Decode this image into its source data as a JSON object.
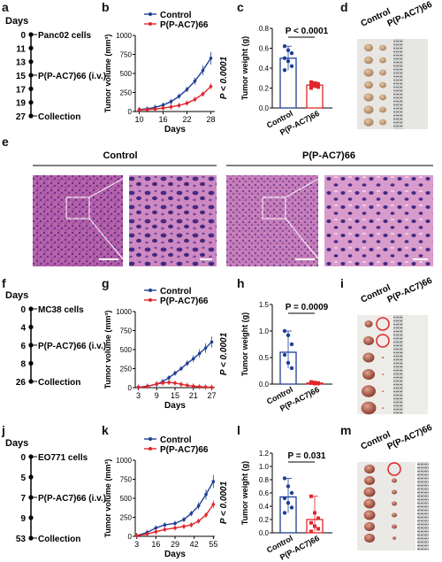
{
  "panel_letters": [
    "a",
    "b",
    "c",
    "d",
    "e",
    "f",
    "g",
    "h",
    "i",
    "j",
    "k",
    "l",
    "m"
  ],
  "timelines": [
    {
      "id": "tl1",
      "header": "Days",
      "events": [
        {
          "day": "0",
          "label": "Panc02 cells",
          "major": true
        },
        {
          "day": "11",
          "label": "",
          "major": false
        },
        {
          "day": "13",
          "label": "",
          "major": false
        },
        {
          "day": "15",
          "label": "P(P-AC7)66 (i.v.)",
          "major": true
        },
        {
          "day": "17",
          "label": "",
          "major": false
        },
        {
          "day": "19",
          "label": "",
          "major": false
        },
        {
          "day": "27",
          "label": "Collection",
          "major": true
        }
      ]
    },
    {
      "id": "tl2",
      "header": "Days",
      "events": [
        {
          "day": "0",
          "label": "MC38 cells",
          "major": true
        },
        {
          "day": "4",
          "label": "",
          "major": false
        },
        {
          "day": "6",
          "label": "P(P-AC7)66 (i.v.)",
          "major": true
        },
        {
          "day": "8",
          "label": "",
          "major": false
        },
        {
          "day": "26",
          "label": "Collection",
          "major": true
        }
      ]
    },
    {
      "id": "tl3",
      "header": "Days",
      "events": [
        {
          "day": "0",
          "label": "EO771 cells",
          "major": true
        },
        {
          "day": "5",
          "label": "",
          "major": false
        },
        {
          "day": "7",
          "label": "P(P-AC7)66 (i.v.)",
          "major": true
        },
        {
          "day": "9",
          "label": "",
          "major": false
        },
        {
          "day": "53",
          "label": "Collection",
          "major": true
        }
      ]
    }
  ],
  "chart_data": [
    {
      "id": "b",
      "type": "line",
      "ylabel": "Tumor volume (mm³)",
      "xlabel": "Days",
      "ylim": [
        0,
        1000
      ],
      "yticks": [
        0,
        250,
        500,
        750,
        1000
      ],
      "xticks": [
        10,
        16,
        22,
        28
      ],
      "xlim": [
        9,
        29
      ],
      "pvalue": "P < 0.0001",
      "series": [
        {
          "name": "Control",
          "color": "#1f3f95",
          "x": [
            10,
            12,
            14,
            16,
            18,
            20,
            22,
            24,
            26,
            28
          ],
          "y": [
            25,
            35,
            55,
            85,
            130,
            200,
            290,
            400,
            540,
            700
          ]
        },
        {
          "name": "P(P-AC7)66",
          "color": "#e0262b",
          "x": [
            10,
            12,
            14,
            16,
            18,
            20,
            22,
            24,
            26,
            28
          ],
          "y": [
            20,
            25,
            32,
            45,
            60,
            80,
            110,
            160,
            230,
            330
          ]
        }
      ]
    },
    {
      "id": "c",
      "type": "bar",
      "ylabel": "Tumor weight (g)",
      "categories": [
        "Control",
        "P(P-AC7)66"
      ],
      "values": [
        0.5,
        0.23
      ],
      "ylim": [
        0,
        0.8
      ],
      "yticks": [
        0.0,
        0.2,
        0.4,
        0.6,
        0.8
      ],
      "pvalue": "P < 0.0001",
      "points": [
        [
          0.62,
          0.58,
          0.55,
          0.5,
          0.47,
          0.42,
          0.38
        ],
        [
          0.26,
          0.25,
          0.24,
          0.23,
          0.22,
          0.21,
          0.2
        ]
      ],
      "colors": [
        "#1f3f95",
        "#e0262b"
      ]
    },
    {
      "id": "g",
      "type": "line",
      "ylabel": "Tumor volume (mm³)",
      "xlabel": "Days",
      "ylim": [
        0,
        1000
      ],
      "yticks": [
        0,
        250,
        500,
        750,
        1000
      ],
      "xticks": [
        3,
        9,
        15,
        21,
        27
      ],
      "xlim": [
        2,
        28
      ],
      "pvalue": "P < 0.0001",
      "series": [
        {
          "name": "Control",
          "color": "#1f3f95",
          "x": [
            3,
            6,
            9,
            11,
            13,
            15,
            17,
            19,
            21,
            23,
            25,
            27
          ],
          "y": [
            5,
            20,
            45,
            80,
            130,
            190,
            250,
            320,
            380,
            450,
            520,
            600
          ]
        },
        {
          "name": "P(P-AC7)66",
          "color": "#e0262b",
          "x": [
            3,
            6,
            9,
            11,
            13,
            15,
            17,
            19,
            21,
            23,
            25,
            27
          ],
          "y": [
            5,
            15,
            50,
            60,
            70,
            60,
            45,
            30,
            20,
            12,
            8,
            5
          ]
        }
      ]
    },
    {
      "id": "h",
      "type": "bar",
      "ylabel": "Tumor weight (g)",
      "categories": [
        "Control",
        "P(P-AC7)66"
      ],
      "values": [
        0.6,
        0.02
      ],
      "ylim": [
        0,
        1.5
      ],
      "yticks": [
        0.0,
        0.5,
        1.0,
        1.5
      ],
      "pvalue": "P = 0.0009",
      "points": [
        [
          1.0,
          0.92,
          0.75,
          0.55,
          0.4,
          0.3
        ],
        [
          0.04,
          0.03,
          0.02,
          0.02,
          0.01,
          0.01
        ]
      ],
      "colors": [
        "#1f3f95",
        "#e0262b"
      ]
    },
    {
      "id": "k",
      "type": "line",
      "ylabel": "Tumor volume (mm³)",
      "xlabel": "Days",
      "ylim": [
        0,
        1000
      ],
      "yticks": [
        0,
        250,
        500,
        750,
        1000
      ],
      "xticks": [
        3,
        16,
        29,
        42,
        55
      ],
      "xlim": [
        2,
        56
      ],
      "pvalue": "P < 0.0001",
      "series": [
        {
          "name": "Control",
          "color": "#1f3f95",
          "x": [
            3,
            10,
            16,
            22,
            29,
            35,
            40,
            45,
            50,
            55
          ],
          "y": [
            10,
            50,
            110,
            150,
            170,
            220,
            300,
            400,
            550,
            720
          ]
        },
        {
          "name": "P(P-AC7)66",
          "color": "#e0262b",
          "x": [
            3,
            10,
            16,
            22,
            29,
            35,
            40,
            45,
            50,
            55
          ],
          "y": [
            8,
            30,
            60,
            90,
            110,
            130,
            150,
            200,
            280,
            420
          ]
        }
      ]
    },
    {
      "id": "l",
      "type": "bar",
      "ylabel": "Tumor weight (g)",
      "categories": [
        "Control",
        "P(P-AC7)66"
      ],
      "values": [
        0.54,
        0.2
      ],
      "ylim": [
        0,
        1.2
      ],
      "yticks": [
        0.0,
        0.2,
        0.4,
        0.6,
        0.8,
        1.0,
        1.2
      ],
      "pvalue": "P = 0.031",
      "points": [
        [
          0.82,
          0.7,
          0.6,
          0.52,
          0.45,
          0.38,
          0.3
        ],
        [
          0.55,
          0.3,
          0.22,
          0.15,
          0.1,
          0.06,
          0.02
        ]
      ],
      "colors": [
        "#1f3f95",
        "#e0262b"
      ]
    }
  ],
  "histology": {
    "left_title": "Control",
    "right_title": "P(P-AC7)66"
  },
  "photo_labels": [
    {
      "id": "d",
      "cols": [
        "Control",
        "P(P-AC7)66"
      ]
    },
    {
      "id": "i",
      "cols": [
        "Control",
        "P(P-AC7)66"
      ]
    },
    {
      "id": "m",
      "cols": [
        "Control",
        "P(P-AC7)66"
      ]
    }
  ]
}
